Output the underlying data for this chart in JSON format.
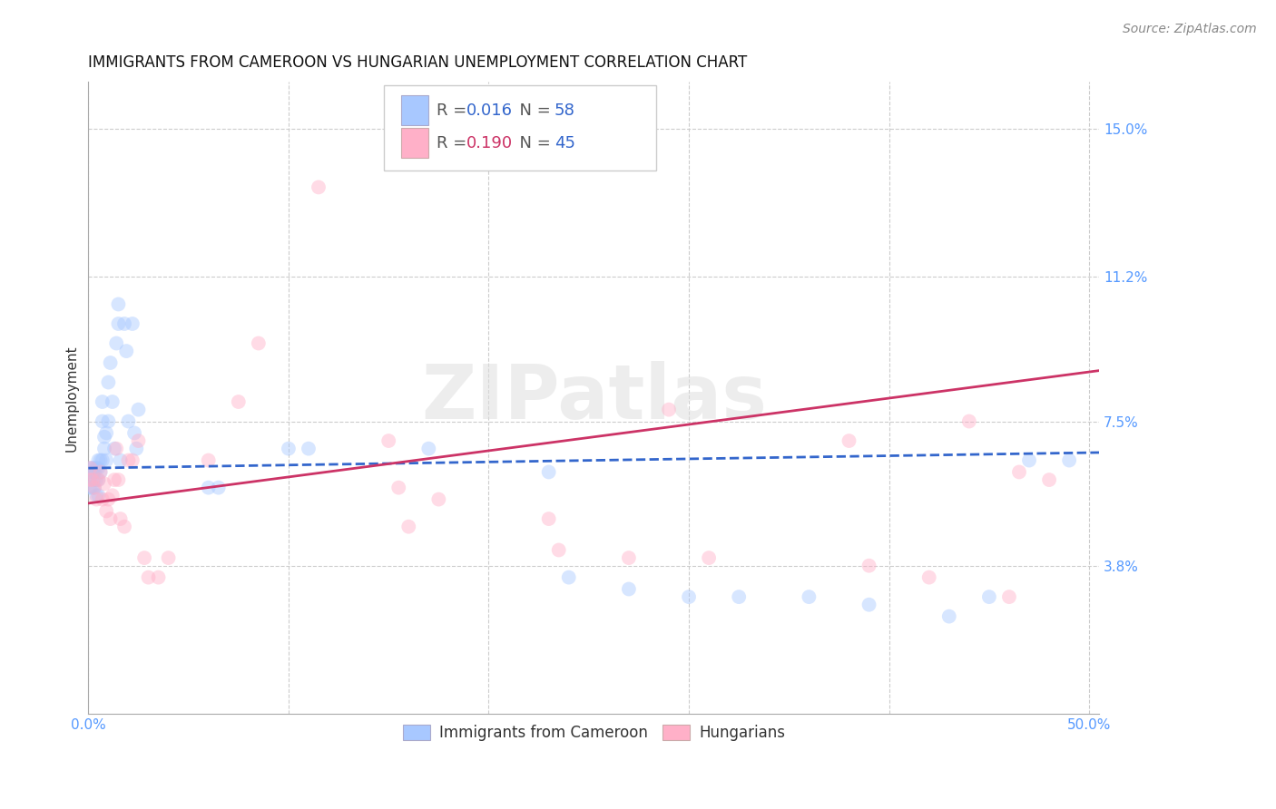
{
  "title": "IMMIGRANTS FROM CAMEROON VS HUNGARIAN UNEMPLOYMENT CORRELATION CHART",
  "source": "Source: ZipAtlas.com",
  "ylabel": "Unemployment",
  "xlim": [
    0.0,
    0.505
  ],
  "ylim": [
    0.0,
    0.162
  ],
  "ytick_vals": [
    0.038,
    0.075,
    0.112,
    0.15
  ],
  "ytick_labels": [
    "3.8%",
    "7.5%",
    "11.2%",
    "15.0%"
  ],
  "xtick_vals": [
    0.0,
    0.1,
    0.2,
    0.3,
    0.4,
    0.5
  ],
  "legend_line1": "R = 0.016   N = 58",
  "legend_line2": "R = 0.190   N = 45",
  "legend_r1": "0.016",
  "legend_n1": "58",
  "legend_r2": "0.190",
  "legend_n2": "45",
  "blue_scatter_x": [
    0.001,
    0.001,
    0.001,
    0.002,
    0.002,
    0.002,
    0.003,
    0.003,
    0.003,
    0.003,
    0.004,
    0.004,
    0.004,
    0.005,
    0.005,
    0.005,
    0.005,
    0.006,
    0.006,
    0.007,
    0.007,
    0.007,
    0.008,
    0.008,
    0.009,
    0.009,
    0.01,
    0.01,
    0.011,
    0.012,
    0.013,
    0.014,
    0.015,
    0.015,
    0.016,
    0.018,
    0.019,
    0.02,
    0.022,
    0.023,
    0.024,
    0.025,
    0.06,
    0.065,
    0.1,
    0.11,
    0.17,
    0.23,
    0.24,
    0.27,
    0.3,
    0.325,
    0.36,
    0.39,
    0.43,
    0.45,
    0.47,
    0.49
  ],
  "blue_scatter_y": [
    0.063,
    0.06,
    0.058,
    0.063,
    0.062,
    0.058,
    0.063,
    0.062,
    0.06,
    0.058,
    0.063,
    0.06,
    0.056,
    0.065,
    0.063,
    0.06,
    0.056,
    0.065,
    0.062,
    0.075,
    0.08,
    0.065,
    0.071,
    0.068,
    0.072,
    0.065,
    0.075,
    0.085,
    0.09,
    0.08,
    0.068,
    0.095,
    0.1,
    0.105,
    0.065,
    0.1,
    0.093,
    0.075,
    0.1,
    0.072,
    0.068,
    0.078,
    0.058,
    0.058,
    0.068,
    0.068,
    0.068,
    0.062,
    0.035,
    0.032,
    0.03,
    0.03,
    0.03,
    0.028,
    0.025,
    0.03,
    0.065,
    0.065
  ],
  "pink_scatter_x": [
    0.001,
    0.001,
    0.002,
    0.003,
    0.004,
    0.005,
    0.006,
    0.007,
    0.008,
    0.009,
    0.01,
    0.011,
    0.012,
    0.013,
    0.014,
    0.015,
    0.016,
    0.018,
    0.02,
    0.022,
    0.025,
    0.028,
    0.03,
    0.035,
    0.04,
    0.06,
    0.075,
    0.085,
    0.115,
    0.15,
    0.155,
    0.16,
    0.175,
    0.23,
    0.235,
    0.27,
    0.29,
    0.31,
    0.38,
    0.39,
    0.42,
    0.44,
    0.46,
    0.465,
    0.48
  ],
  "pink_scatter_y": [
    0.063,
    0.06,
    0.06,
    0.058,
    0.055,
    0.06,
    0.062,
    0.055,
    0.059,
    0.052,
    0.055,
    0.05,
    0.056,
    0.06,
    0.068,
    0.06,
    0.05,
    0.048,
    0.065,
    0.065,
    0.07,
    0.04,
    0.035,
    0.035,
    0.04,
    0.065,
    0.08,
    0.095,
    0.135,
    0.07,
    0.058,
    0.048,
    0.055,
    0.05,
    0.042,
    0.04,
    0.078,
    0.04,
    0.07,
    0.038,
    0.035,
    0.075,
    0.03,
    0.062,
    0.06
  ],
  "blue_line_x": [
    0.0,
    0.505
  ],
  "blue_line_y": [
    0.063,
    0.067
  ],
  "pink_line_x": [
    0.0,
    0.505
  ],
  "pink_line_y": [
    0.054,
    0.088
  ],
  "blue_color": "#a8c8ff",
  "pink_color": "#ffb0c8",
  "blue_line_color": "#3366cc",
  "pink_line_color": "#cc3366",
  "scatter_size": 130,
  "scatter_alpha": 0.45,
  "title_fontsize": 12,
  "label_fontsize": 11,
  "tick_fontsize": 11,
  "source_fontsize": 10,
  "background_color": "#ffffff",
  "grid_color": "#cccccc",
  "axis_color": "#aaaaaa",
  "tick_color": "#5599ff",
  "text_color": "#333333"
}
